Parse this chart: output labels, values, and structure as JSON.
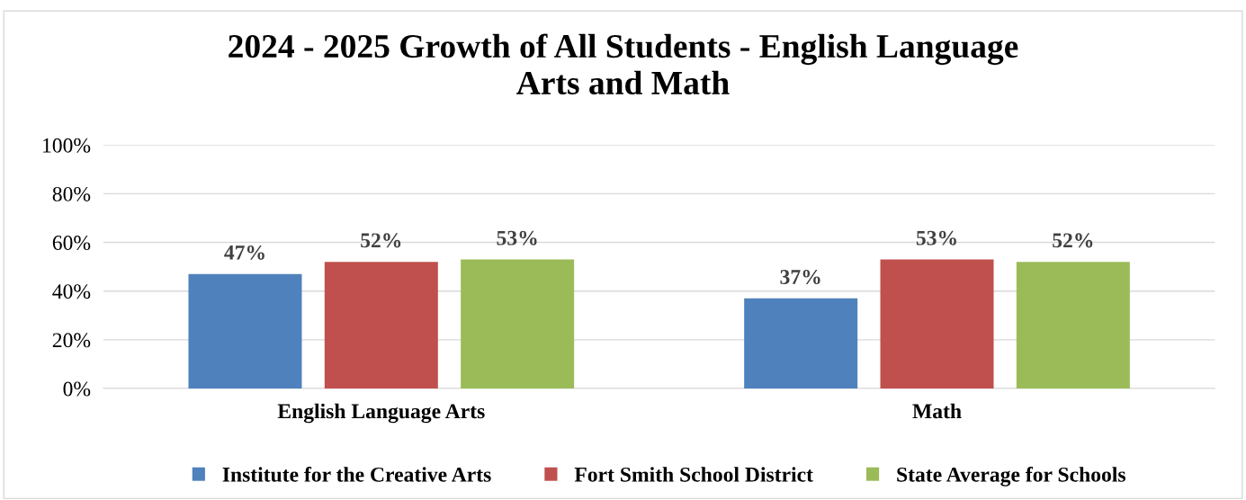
{
  "chart_data": {
    "type": "bar",
    "title": "2024 - 2025 Growth of All Students - English Language\nArts and Math",
    "categories": [
      "English Language Arts",
      "Math"
    ],
    "series": [
      {
        "name": "Institute for the Creative Arts",
        "color": "#4f81bd",
        "values": [
          47,
          37
        ],
        "value_labels": [
          "47%",
          "37%"
        ]
      },
      {
        "name": "Fort Smith School District",
        "color": "#c0504d",
        "values": [
          52,
          53
        ],
        "value_labels": [
          "52%",
          "53%"
        ]
      },
      {
        "name": "State Average for Schools",
        "color": "#9bbb59",
        "values": [
          53,
          52
        ],
        "value_labels": [
          "53%",
          "52%"
        ]
      }
    ],
    "ylim": [
      0,
      100
    ],
    "yticks": [
      {
        "value": 0,
        "label": "0%"
      },
      {
        "value": 20,
        "label": "20%"
      },
      {
        "value": 40,
        "label": "40%"
      },
      {
        "value": 60,
        "label": "60%"
      },
      {
        "value": 80,
        "label": "80%"
      },
      {
        "value": 100,
        "label": "100%"
      }
    ],
    "grid": "y",
    "legend": "bottom"
  }
}
